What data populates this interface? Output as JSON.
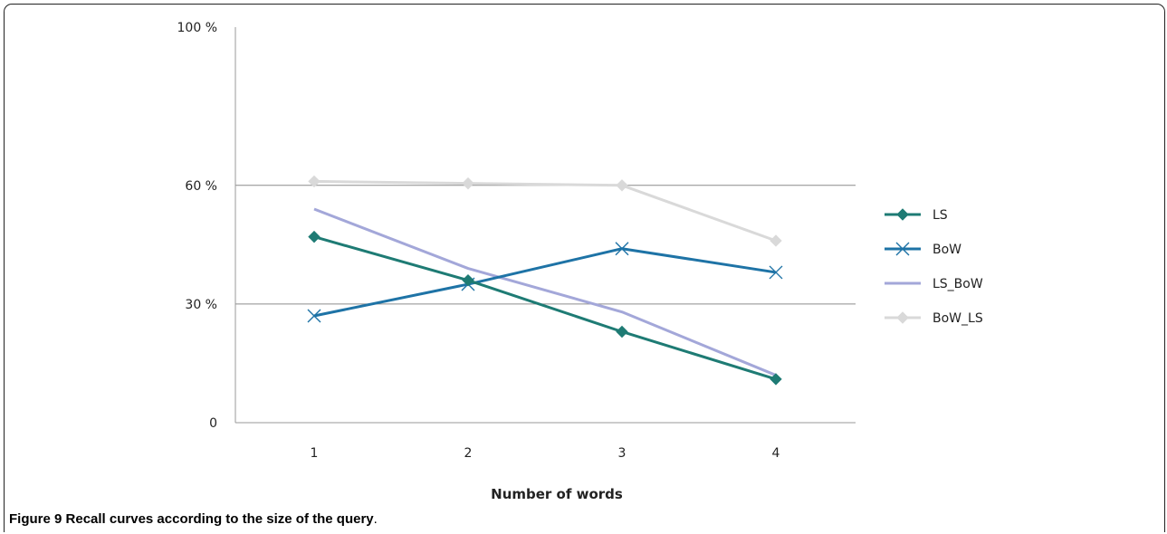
{
  "chart_data": {
    "type": "line",
    "x": [
      1,
      2,
      3,
      4
    ],
    "xlabel": "Number of words",
    "ylabel": "",
    "y_ticks": [
      {
        "value": 0,
        "label": "0"
      },
      {
        "value": 30,
        "label": "30 %"
      },
      {
        "value": 60,
        "label": "60 %"
      },
      {
        "value": 100,
        "label": "100 %"
      }
    ],
    "ylim": [
      0,
      100
    ],
    "gridlines_at": [
      30,
      60
    ],
    "legend_position": "right",
    "series": [
      {
        "name": "LS",
        "values": [
          47,
          36,
          23,
          11
        ],
        "color": "#1e7b74",
        "marker": "diamond"
      },
      {
        "name": "BoW",
        "values": [
          27,
          35,
          44,
          38
        ],
        "color": "#1e73a6",
        "marker": "x"
      },
      {
        "name": "LS_BoW",
        "values": [
          54,
          39,
          28,
          12
        ],
        "color": "#a3a7d9",
        "marker": "none"
      },
      {
        "name": "BoW_LS",
        "values": [
          61,
          60.5,
          60,
          46
        ],
        "color": "#d9d9d9",
        "marker": "diamond"
      }
    ]
  },
  "caption": {
    "label": "Figure 9",
    "text": "Recall curves according to the size of the query",
    "period": "."
  }
}
